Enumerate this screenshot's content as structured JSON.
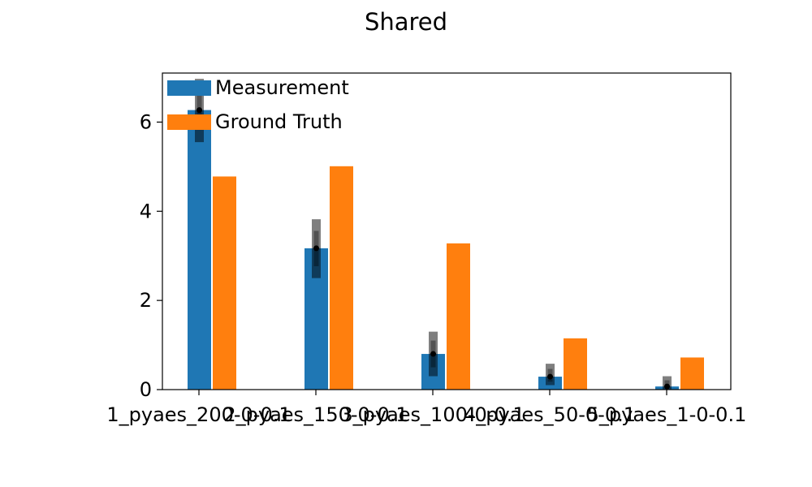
{
  "chart_data": {
    "type": "bar",
    "title": "Shared",
    "xlabel": "",
    "ylabel": "",
    "categories": [
      "1_pyaes_200-0-0.1",
      "2_pyaes_150-0-0.1",
      "3_pyaes_100-0-0.1",
      "4_pyaes_50-0-0.1",
      "5_pyaes_1-0-0.1"
    ],
    "series": [
      {
        "name": "Measurement",
        "color": "#1f77b4",
        "values": [
          6.27,
          3.17,
          0.8,
          0.29,
          0.07
        ],
        "error_low": [
          5.55,
          2.5,
          0.3,
          0.1,
          0.0
        ],
        "error_high": [
          6.97,
          3.82,
          1.3,
          0.58,
          0.3
        ]
      },
      {
        "name": "Ground Truth",
        "color": "#ff7f0e",
        "values": [
          4.78,
          5.01,
          3.28,
          1.15,
          0.72
        ]
      }
    ],
    "ylim": [
      0,
      7.1
    ],
    "yticks": [
      "0",
      "2",
      "4",
      "6"
    ],
    "grid": false,
    "legend_position": "top-left"
  }
}
